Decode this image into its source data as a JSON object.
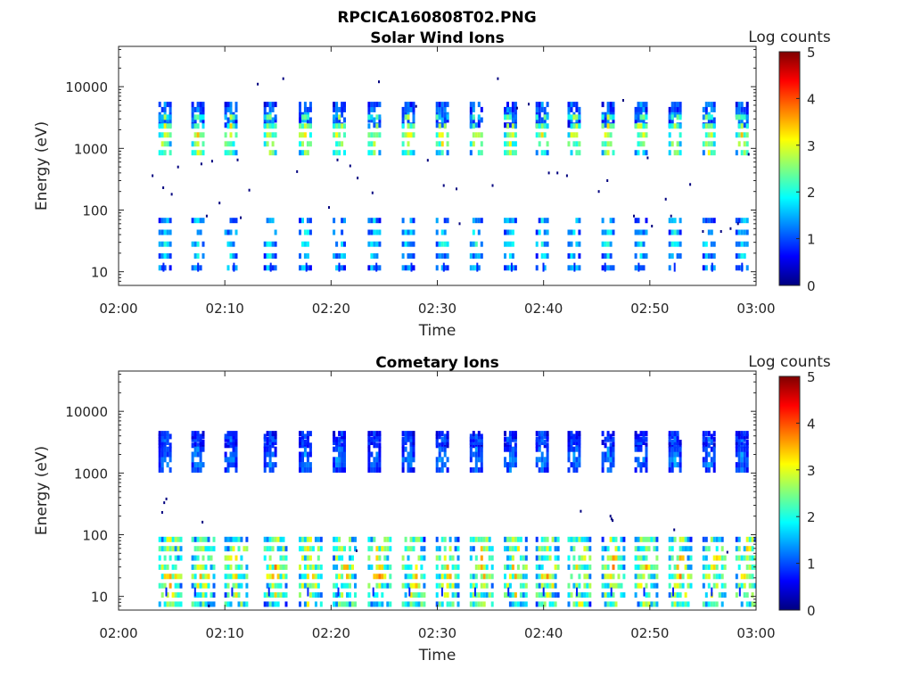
{
  "figure": {
    "filename": "RPCICA160808T02.PNG"
  },
  "colormap": {
    "name": "jet",
    "stops": [
      "#00007f",
      "#0000ff",
      "#007fff",
      "#00ffff",
      "#7fff7f",
      "#ffff00",
      "#ff7f00",
      "#ff0000",
      "#7f0000"
    ]
  },
  "chart_data": [
    {
      "type": "heatmap",
      "title": "Solar Wind Ions",
      "xlabel": "Time",
      "ylabel": "Energy (eV)",
      "colorbar_label": "Log counts",
      "colorbar_ticks": [
        "0",
        "1",
        "2",
        "3",
        "4",
        "5"
      ],
      "clim": [
        0,
        5
      ],
      "xlim_minutes": [
        0,
        60
      ],
      "xticks": [
        "02:00",
        "02:10",
        "02:20",
        "02:30",
        "02:40",
        "02:50",
        "03:00"
      ],
      "ylim": [
        6,
        45000
      ],
      "yscale": "log",
      "yticks": [
        "10",
        "100",
        "1000",
        "10000"
      ],
      "scans_minutes": [
        4.3,
        7.4,
        10.5,
        14.2,
        17.5,
        20.7,
        24.0,
        27.2,
        30.4,
        33.6,
        36.8,
        39.8,
        42.8,
        46.0,
        49.1,
        52.3,
        55.5,
        58.6
      ],
      "bands": [
        {
          "energy_eV": 3500,
          "spread": 0.35,
          "level": 0.9,
          "vary": 0.4
        },
        {
          "energy_eV": 1650,
          "spread": 0.6,
          "level": 2.0,
          "vary": 0.6
        },
        {
          "energy_eV": 28,
          "spread": 0.8,
          "level": 1.2,
          "vary": 0.5
        }
      ],
      "scatter_points": [
        [
          3.2,
          360
        ],
        [
          4.2,
          230
        ],
        [
          5.0,
          180
        ],
        [
          5.6,
          500
        ],
        [
          7.8,
          560
        ],
        [
          8.3,
          80
        ],
        [
          8.8,
          620
        ],
        [
          9.5,
          130
        ],
        [
          11.2,
          650
        ],
        [
          11.5,
          75
        ],
        [
          12.3,
          210
        ],
        [
          13.1,
          11000
        ],
        [
          15.5,
          13500
        ],
        [
          16.8,
          420
        ],
        [
          19.8,
          110
        ],
        [
          20.6,
          650
        ],
        [
          21.8,
          520
        ],
        [
          22.5,
          330
        ],
        [
          24.5,
          12000
        ],
        [
          23.9,
          190
        ],
        [
          28.0,
          4800
        ],
        [
          29.1,
          640
        ],
        [
          30.6,
          250
        ],
        [
          31.8,
          220
        ],
        [
          32.1,
          60
        ],
        [
          35.7,
          13500
        ],
        [
          35.2,
          250
        ],
        [
          37.5,
          4500
        ],
        [
          38.6,
          5200
        ],
        [
          40.5,
          400
        ],
        [
          41.3,
          400
        ],
        [
          42.2,
          360
        ],
        [
          45.2,
          200
        ],
        [
          46.0,
          300
        ],
        [
          47.5,
          6000
        ],
        [
          48.5,
          80
        ],
        [
          49.8,
          700
        ],
        [
          50.2,
          55
        ],
        [
          51.5,
          150
        ],
        [
          52.0,
          80
        ],
        [
          53.8,
          260
        ],
        [
          55.0,
          45
        ],
        [
          56.7,
          45
        ],
        [
          57.6,
          50
        ],
        [
          58.3,
          60
        ],
        [
          59.3,
          800
        ]
      ]
    },
    {
      "type": "heatmap",
      "title": "Cometary Ions",
      "xlabel": "Time",
      "ylabel": "Energy (eV)",
      "colorbar_label": "Log counts",
      "colorbar_ticks": [
        "0",
        "1",
        "2",
        "3",
        "4",
        "5"
      ],
      "clim": [
        0,
        5
      ],
      "xlim_minutes": [
        0,
        60
      ],
      "xticks": [
        "02:00",
        "02:10",
        "02:20",
        "02:30",
        "02:40",
        "02:50",
        "03:00"
      ],
      "ylim": [
        6,
        45000
      ],
      "yscale": "log",
      "yticks": [
        "10",
        "100",
        "1000",
        "10000"
      ],
      "scans_minutes": [
        4.3,
        7.4,
        10.5,
        14.2,
        17.5,
        20.7,
        24.0,
        27.2,
        30.4,
        33.6,
        36.8,
        39.8,
        42.8,
        46.0,
        49.1,
        52.3,
        55.5,
        58.6
      ],
      "bands": [
        {
          "energy_eV": 3500,
          "spread": 0.2,
          "level": 0.7,
          "vary": 0.3
        },
        {
          "energy_eV": 1650,
          "spread": 0.35,
          "level": 0.9,
          "vary": 0.3
        },
        {
          "energy_eV": 25,
          "spread": 1.0,
          "level": 2.0,
          "vary": 0.9
        }
      ],
      "scatter_points": [
        [
          4.3,
          330
        ],
        [
          4.5,
          380
        ],
        [
          4.1,
          230
        ],
        [
          7.9,
          160
        ],
        [
          22.4,
          55
        ],
        [
          43.5,
          240
        ],
        [
          46.3,
          200
        ],
        [
          46.4,
          180
        ],
        [
          46.5,
          170
        ],
        [
          52.3,
          120
        ],
        [
          57.3,
          52
        ],
        [
          8.5,
          7
        ]
      ]
    }
  ]
}
